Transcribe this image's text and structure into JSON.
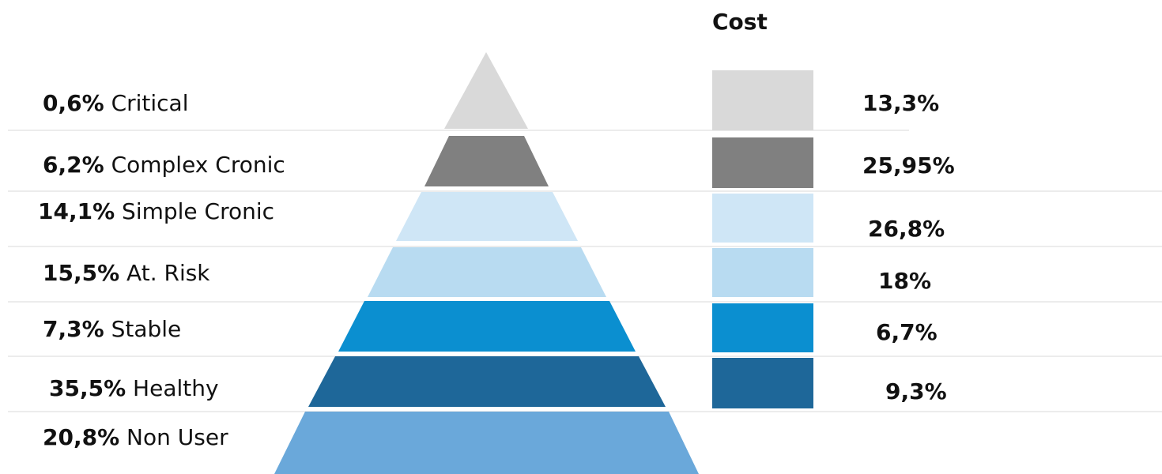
{
  "title": "Cost",
  "segments": [
    {
      "id": "critical",
      "percent": "0,6%",
      "label": "Critical",
      "cost": "13,3%",
      "color": "#d9d9d9"
    },
    {
      "id": "complex-cronic",
      "percent": "6,2%",
      "label": "Complex Cronic",
      "cost": "25,95%",
      "color": "#808080"
    },
    {
      "id": "simple-cronic",
      "percent": "14,1%",
      "label": "Simple Cronic",
      "cost": "26,8%",
      "color": "#cfe6f6"
    },
    {
      "id": "at-risk",
      "percent": "15,5%",
      "label": "At. Risk",
      "cost": "18%",
      "color": "#b8dbf1"
    },
    {
      "id": "stable",
      "percent": "7,3%",
      "label": "Stable",
      "cost": "6,7%",
      "color": "#0b8fd0"
    },
    {
      "id": "healthy",
      "percent": "35,5%",
      "label": "Healthy",
      "cost": "9,3%",
      "color": "#1e6799"
    },
    {
      "id": "non-user",
      "percent": "20,8%",
      "label": "Non User",
      "cost": "",
      "color": "#6aa8da"
    }
  ]
}
